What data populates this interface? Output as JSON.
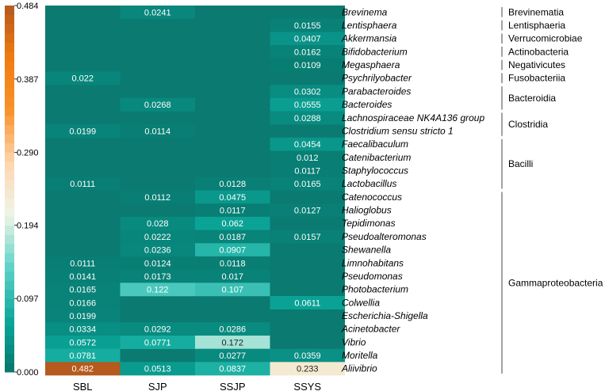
{
  "chart_data": {
    "type": "heatmap",
    "columns": [
      "SBL",
      "SJP",
      "SSJP",
      "SSYS"
    ],
    "rows": [
      {
        "genus": "Brevinema",
        "values": [
          null,
          0.0241,
          null,
          null
        ],
        "labels": [
          "",
          "0.0241",
          "",
          ""
        ]
      },
      {
        "genus": "Lentisphaera",
        "values": [
          null,
          null,
          null,
          0.0155
        ],
        "labels": [
          "",
          "",
          "",
          "0.0155"
        ]
      },
      {
        "genus": "Akkermansia",
        "values": [
          null,
          null,
          null,
          0.0407
        ],
        "labels": [
          "",
          "",
          "",
          "0.0407"
        ]
      },
      {
        "genus": "Bifidobacterium",
        "values": [
          null,
          null,
          null,
          0.0162
        ],
        "labels": [
          "",
          "",
          "",
          "0.0162"
        ]
      },
      {
        "genus": "Megasphaera",
        "values": [
          null,
          null,
          null,
          0.0109
        ],
        "labels": [
          "",
          "",
          "",
          "0.0109"
        ]
      },
      {
        "genus": "Psychrilyobacter",
        "values": [
          0.022,
          null,
          null,
          null
        ],
        "labels": [
          "0.022",
          "",
          "",
          ""
        ]
      },
      {
        "genus": "Parabacteroides",
        "values": [
          null,
          null,
          null,
          0.0302
        ],
        "labels": [
          "",
          "",
          "",
          "0.0302"
        ]
      },
      {
        "genus": "Bacteroides",
        "values": [
          null,
          0.0268,
          null,
          0.0555
        ],
        "labels": [
          "",
          "0.0268",
          "",
          "0.0555"
        ]
      },
      {
        "genus": "Lachnospiraceae NK4A136 group",
        "values": [
          null,
          null,
          null,
          0.0288
        ],
        "labels": [
          "",
          "",
          "",
          "0.0288"
        ]
      },
      {
        "genus": "Clostridium sensu stricto 1",
        "values": [
          0.0199,
          0.0114,
          null,
          null
        ],
        "labels": [
          "0.0199",
          "0.0114",
          "",
          ""
        ]
      },
      {
        "genus": "Faecalibaculum",
        "values": [
          null,
          null,
          null,
          0.0454
        ],
        "labels": [
          "",
          "",
          "",
          "0.0454"
        ]
      },
      {
        "genus": "Catenibacterium",
        "values": [
          null,
          null,
          null,
          0.012
        ],
        "labels": [
          "",
          "",
          "",
          "0.012"
        ]
      },
      {
        "genus": "Staphylococcus",
        "values": [
          null,
          null,
          null,
          0.0117
        ],
        "labels": [
          "",
          "",
          "",
          "0.0117"
        ]
      },
      {
        "genus": "Lactobacillus",
        "values": [
          0.0111,
          null,
          0.0128,
          0.0165
        ],
        "labels": [
          "0.0111",
          "",
          "0.0128",
          "0.0165"
        ]
      },
      {
        "genus": "Catenococcus",
        "values": [
          null,
          0.0112,
          0.0475,
          null
        ],
        "labels": [
          "",
          "0.0112",
          "0.0475",
          ""
        ]
      },
      {
        "genus": "Halioglobus",
        "values": [
          null,
          null,
          0.0117,
          0.0127
        ],
        "labels": [
          "",
          "",
          "0.0117",
          "0.0127"
        ]
      },
      {
        "genus": "Tepidimonas",
        "values": [
          null,
          0.028,
          0.062,
          null
        ],
        "labels": [
          "",
          "0.028",
          "0.062",
          ""
        ]
      },
      {
        "genus": "Pseudoalteromonas",
        "values": [
          null,
          0.0222,
          0.0187,
          0.0157
        ],
        "labels": [
          "",
          "0.0222",
          "0.0187",
          "0.0157"
        ]
      },
      {
        "genus": "Shewanella",
        "values": [
          null,
          0.0236,
          0.0907,
          null
        ],
        "labels": [
          "",
          "0.0236",
          "0.0907",
          ""
        ]
      },
      {
        "genus": "Limnohabitans",
        "values": [
          0.0111,
          0.0124,
          0.0118,
          null
        ],
        "labels": [
          "0.0111",
          "0.0124",
          "0.0118",
          ""
        ]
      },
      {
        "genus": "Pseudomonas",
        "values": [
          0.0141,
          0.0173,
          0.017,
          null
        ],
        "labels": [
          "0.0141",
          "0.0173",
          "0.017",
          ""
        ]
      },
      {
        "genus": "Photobacterium",
        "values": [
          0.0165,
          0.122,
          0.107,
          null
        ],
        "labels": [
          "0.0165",
          "0.122",
          "0.107",
          ""
        ]
      },
      {
        "genus": "Colwellia",
        "values": [
          0.0166,
          null,
          null,
          0.0611
        ],
        "labels": [
          "0.0166",
          "",
          "",
          "0.0611"
        ]
      },
      {
        "genus": "Escherichia-Shigella",
        "values": [
          0.0199,
          null,
          null,
          null
        ],
        "labels": [
          "0.0199",
          "",
          "",
          ""
        ]
      },
      {
        "genus": "Acinetobacter",
        "values": [
          0.0334,
          0.0292,
          0.0286,
          null
        ],
        "labels": [
          "0.0334",
          "0.0292",
          "0.0286",
          ""
        ]
      },
      {
        "genus": "Vibrio",
        "values": [
          0.0572,
          0.0771,
          0.172,
          null
        ],
        "labels": [
          "0.0572",
          "0.0771",
          "0.172",
          ""
        ]
      },
      {
        "genus": "Moritella",
        "values": [
          0.0781,
          null,
          0.0277,
          0.0359
        ],
        "labels": [
          "0.0781",
          "",
          "0.0277",
          "0.0359"
        ]
      },
      {
        "genus": "Aliivibrio",
        "values": [
          0.482,
          0.0513,
          0.0837,
          0.233
        ],
        "labels": [
          "0.482",
          "0.0513",
          "0.0837",
          "0.233"
        ]
      }
    ],
    "groups": [
      {
        "name": "Brevinematia",
        "start": 0,
        "end": 0
      },
      {
        "name": "Lentisphaeria",
        "start": 1,
        "end": 1
      },
      {
        "name": "Verrucomicrobiae",
        "start": 2,
        "end": 2
      },
      {
        "name": "Actinobacteria",
        "start": 3,
        "end": 3
      },
      {
        "name": "Negativicutes",
        "start": 4,
        "end": 4
      },
      {
        "name": "Fusobacteriia",
        "start": 5,
        "end": 5
      },
      {
        "name": "Bacteroidia",
        "start": 6,
        "end": 7
      },
      {
        "name": "Clostridia",
        "start": 8,
        "end": 9
      },
      {
        "name": "Bacilli",
        "start": 10,
        "end": 13
      },
      {
        "name": "Gammaproteobacteria",
        "start": 14,
        "end": 27
      }
    ],
    "colorbar": {
      "min": 0.0,
      "max": 0.484,
      "ticks": [
        {
          "value": 0.484,
          "label": "0.484"
        },
        {
          "value": 0.387,
          "label": "0.387"
        },
        {
          "value": 0.29,
          "label": "0.290"
        },
        {
          "value": 0.194,
          "label": "0.194"
        },
        {
          "value": 0.097,
          "label": "0.097"
        },
        {
          "value": 0.0,
          "label": "0.000"
        }
      ],
      "colors": [
        "#08766c",
        "#0ba89b",
        "#5fd2c8",
        "#eef5e6",
        "#fdd6b0",
        "#f9922a",
        "#f07c10",
        "#b4591e"
      ]
    },
    "base_color": "#0b7a70",
    "label_color_light": "#ffffff",
    "label_color_dark": "#222222"
  }
}
